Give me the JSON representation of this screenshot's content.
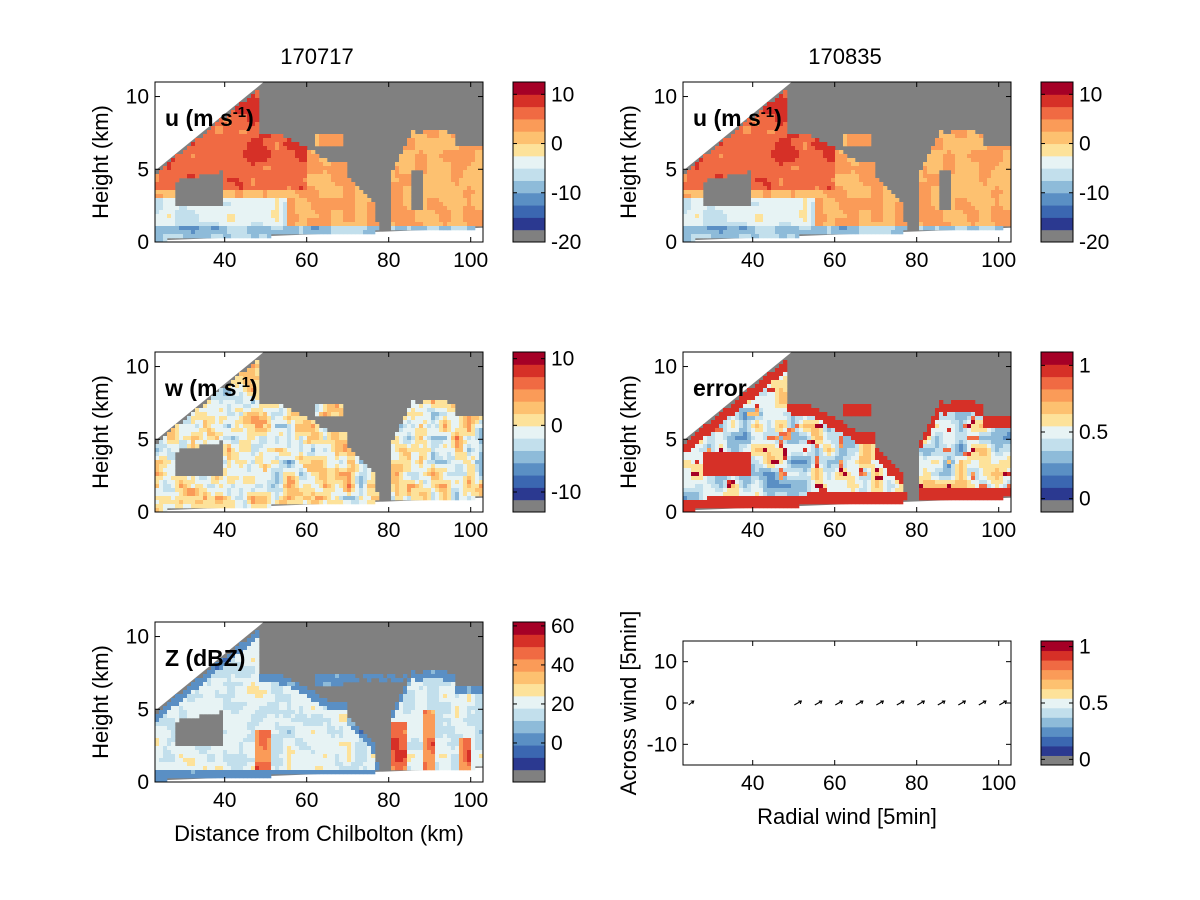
{
  "figure": {
    "columns": [
      "170717",
      "170835"
    ],
    "xlabel": "Distance from Chilbolton (km)"
  },
  "colors": {
    "palette": [
      "#808080",
      "#2b3990",
      "#3b67b1",
      "#5a8fc4",
      "#8ebbd9",
      "#c2dfec",
      "#e7f3f4",
      "#fde29a",
      "#fdc170",
      "#fa9b58",
      "#f06a43",
      "#d63027",
      "#a50026"
    ],
    "mask": "#808080",
    "ucmap": [
      "#808080",
      "#2b3990",
      "#3b67b1",
      "#5a8fc4",
      "#8ebbd9",
      "#c2dfec",
      "#e7f3f4",
      "#fde29a",
      "#fdc170",
      "#fa9b58",
      "#f06a43",
      "#d63027",
      "#a50026"
    ]
  },
  "chart_data": [
    {
      "type": "heatmap",
      "panel": "u-left",
      "label": "u (m s",
      "label_sup": "-1",
      "label_close": ")",
      "ylabel": "Height (km)",
      "xlabel": "",
      "xlim": [
        23,
        103
      ],
      "ylim": [
        0,
        11
      ],
      "xticks": [
        40,
        60,
        80,
        100
      ],
      "yticks": [
        0,
        5,
        10
      ],
      "colorbar": {
        "range": [
          -20,
          12.5
        ],
        "ticks": [
          10,
          0,
          -10,
          -20
        ]
      }
    },
    {
      "type": "heatmap",
      "panel": "u-right",
      "label": "u (m s",
      "label_sup": "-1",
      "label_close": ")",
      "ylabel": "Height (km)",
      "xlabel": "",
      "xlim": [
        23,
        103
      ],
      "ylim": [
        0,
        11
      ],
      "xticks": [
        40,
        60,
        80,
        100
      ],
      "yticks": [
        0,
        5,
        10
      ],
      "colorbar": {
        "range": [
          -20,
          12.5
        ],
        "ticks": [
          10,
          0,
          -10,
          -20
        ]
      }
    },
    {
      "type": "heatmap",
      "panel": "w-left",
      "label": "w (m s",
      "label_sup": "-1",
      "label_close": ")",
      "ylabel": "Height (km)",
      "xlabel": "",
      "xlim": [
        23,
        103
      ],
      "ylim": [
        0,
        11
      ],
      "xticks": [
        40,
        60,
        80,
        100
      ],
      "yticks": [
        0,
        5,
        10
      ],
      "colorbar": {
        "range": [
          -13,
          11
        ],
        "ticks": [
          10,
          0,
          -10
        ]
      }
    },
    {
      "type": "heatmap",
      "panel": "error-right",
      "label": "error",
      "label_sup": "",
      "label_close": "",
      "ylabel": "Height (km)",
      "xlabel": "",
      "xlim": [
        23,
        103
      ],
      "ylim": [
        0,
        11
      ],
      "xticks": [
        40,
        60,
        80,
        100
      ],
      "yticks": [
        0,
        5,
        10
      ],
      "colorbar": {
        "range": [
          -0.1,
          1.1
        ],
        "ticks": [
          1,
          0.5,
          0
        ]
      }
    },
    {
      "type": "heatmap",
      "panel": "z-left",
      "label": "Z (dBZ)",
      "label_sup": "",
      "label_close": "",
      "ylabel": "Height (km)",
      "xlabel": "Distance from Chilbolton (km)",
      "xlim": [
        23,
        103
      ],
      "ylim": [
        0,
        11
      ],
      "xticks": [
        40,
        60,
        80,
        100
      ],
      "yticks": [
        0,
        5,
        10
      ],
      "colorbar": {
        "range": [
          -20,
          62
        ],
        "ticks": [
          60,
          40,
          20,
          0
        ]
      }
    },
    {
      "type": "scatter",
      "panel": "quiver-right",
      "xlabel": "Radial wind [5min]",
      "ylabel": "Across wind [5min]",
      "xlim": [
        23,
        103
      ],
      "ylim": [
        -15,
        15
      ],
      "xticks": [
        40,
        60,
        80,
        100
      ],
      "yticks": [
        10,
        0,
        -10
      ],
      "arrows": [
        {
          "x": 25,
          "y": 0
        },
        {
          "x": 51,
          "y": 0
        },
        {
          "x": 56,
          "y": 0
        },
        {
          "x": 61,
          "y": 0
        },
        {
          "x": 66,
          "y": 0
        },
        {
          "x": 71,
          "y": 0
        },
        {
          "x": 76,
          "y": 0
        },
        {
          "x": 81,
          "y": 0
        },
        {
          "x": 86,
          "y": 0
        },
        {
          "x": 91,
          "y": 0
        },
        {
          "x": 96,
          "y": 0
        },
        {
          "x": 101,
          "y": 0
        }
      ],
      "colorbar": {
        "range": [
          -0.05,
          1.05
        ],
        "ticks": [
          1,
          0.5,
          0
        ]
      }
    }
  ]
}
